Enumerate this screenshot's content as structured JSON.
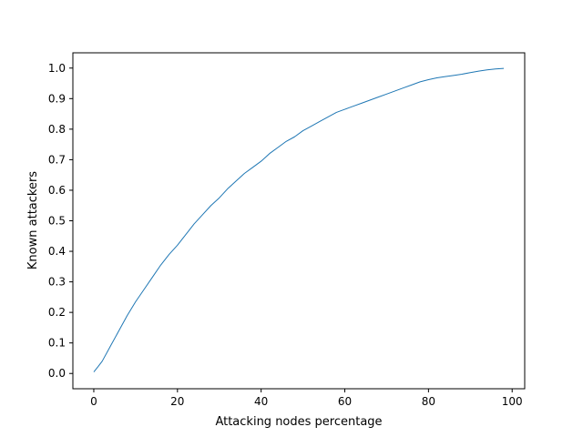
{
  "chart_data": {
    "type": "line",
    "title": "",
    "xlabel": "Attacking nodes percentage",
    "ylabel": "Known attackers",
    "xlim": [
      -5,
      103
    ],
    "ylim": [
      -0.05,
      1.05
    ],
    "xticks": [
      0,
      20,
      40,
      60,
      80,
      100
    ],
    "xtick_labels": [
      "0",
      "20",
      "40",
      "60",
      "80",
      "100"
    ],
    "yticks": [
      0.0,
      0.1,
      0.2,
      0.3,
      0.4,
      0.5,
      0.6,
      0.7,
      0.8,
      0.9,
      1.0
    ],
    "ytick_labels": [
      "0.0",
      "0.1",
      "0.2",
      "0.3",
      "0.4",
      "0.5",
      "0.6",
      "0.7",
      "0.8",
      "0.9",
      "1.0"
    ],
    "grid": false,
    "legend": "none",
    "series": [
      {
        "color": "#1f77b4",
        "x": [
          0,
          1,
          2,
          4,
          6,
          8,
          10,
          12,
          14,
          16,
          18,
          20,
          22,
          24,
          26,
          28,
          30,
          32,
          34,
          36,
          38,
          40,
          42,
          44,
          46,
          48,
          50,
          52,
          54,
          56,
          58,
          60,
          62,
          64,
          66,
          68,
          70,
          72,
          74,
          76,
          78,
          80,
          82,
          84,
          86,
          88,
          90,
          92,
          94,
          96,
          98
        ],
        "y": [
          0.005,
          0.022,
          0.04,
          0.09,
          0.14,
          0.19,
          0.235,
          0.275,
          0.315,
          0.355,
          0.39,
          0.42,
          0.455,
          0.49,
          0.52,
          0.55,
          0.575,
          0.605,
          0.63,
          0.655,
          0.675,
          0.695,
          0.72,
          0.74,
          0.76,
          0.775,
          0.795,
          0.81,
          0.825,
          0.84,
          0.855,
          0.865,
          0.875,
          0.885,
          0.895,
          0.905,
          0.915,
          0.925,
          0.935,
          0.945,
          0.955,
          0.962,
          0.968,
          0.972,
          0.976,
          0.98,
          0.985,
          0.99,
          0.994,
          0.997,
          0.999
        ]
      }
    ]
  }
}
